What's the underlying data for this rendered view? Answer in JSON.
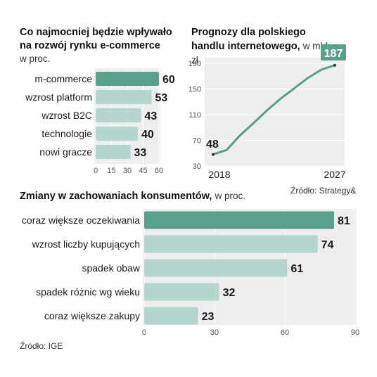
{
  "colors": {
    "accent": "#5a9e8c",
    "bar": "#b4d6cf",
    "panel": "#eeeeee",
    "grid": "#ffffff",
    "text": "#1a1a1a",
    "axis": "#555555"
  },
  "chart_data": [
    {
      "type": "bar",
      "orientation": "horizontal",
      "title": "Co najmocniej będzie wpływało na rozwój rynku e-commerce",
      "unit": "w proc.",
      "categories": [
        "m-commerce",
        "wzrost platform",
        "wzrost B2C",
        "technologie",
        "nowi gracze"
      ],
      "values": [
        60,
        53,
        43,
        40,
        33
      ],
      "highlight_index": 0,
      "xlim": [
        0,
        60
      ],
      "xticks": [
        "0",
        "15",
        "30",
        "45",
        "60"
      ],
      "grid": true
    },
    {
      "type": "line",
      "title": "Prognozy dla polskiego handlu internetowego,",
      "unit": "w mld zł",
      "x": [
        2018,
        2019,
        2020,
        2021,
        2022,
        2023,
        2024,
        2025,
        2026,
        2027
      ],
      "y": [
        48,
        55,
        78,
        97,
        117,
        135,
        151,
        167,
        180,
        187
      ],
      "xticks": [
        "2018",
        "2027"
      ],
      "yticks": [
        "30",
        "70",
        "110",
        "150",
        "190"
      ],
      "ylim": [
        30,
        190
      ],
      "start_label": "48",
      "end_label": "187",
      "source": "Źródło: Strategy&",
      "grid": true
    },
    {
      "type": "bar",
      "orientation": "horizontal",
      "title": "Zmiany w zachowaniach konsumentów,",
      "unit": "w proc.",
      "categories": [
        "coraz większe oczekiwania",
        "wzrost liczby kupujących",
        "spadek obaw",
        "spadek różnic wg wieku",
        "coraz większe zakupy"
      ],
      "values": [
        81,
        74,
        61,
        32,
        23
      ],
      "highlight_index": 0,
      "xlim": [
        0,
        90
      ],
      "xticks": [
        "0",
        "30",
        "60",
        "90"
      ],
      "source": "Źródło: IGE",
      "grid": true
    }
  ]
}
